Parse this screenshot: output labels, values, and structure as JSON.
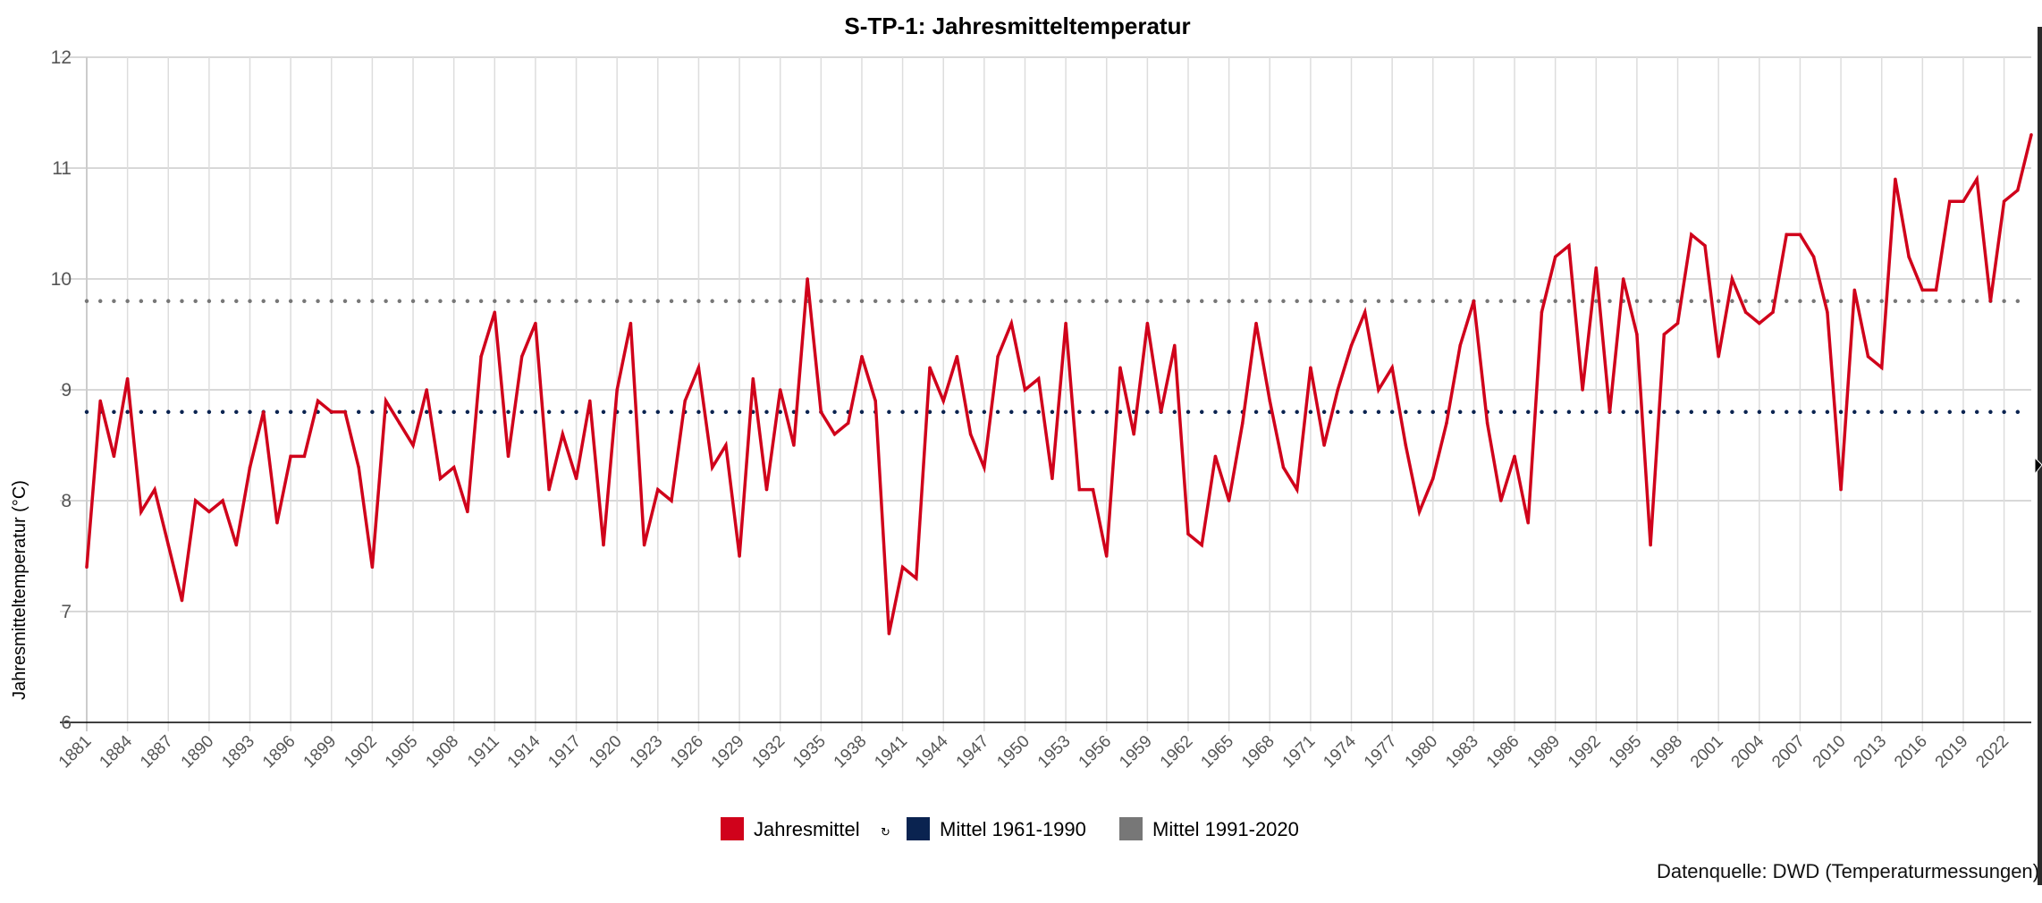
{
  "chart_data": {
    "type": "line",
    "title": "S-TP-1: Jahresmitteltemperatur",
    "xlabel": "",
    "ylabel": "Jahresmitteltemperatur (°C)",
    "ylim": [
      6,
      12
    ],
    "yticks": [
      "6",
      "7",
      "8",
      "9",
      "10",
      "11",
      "12"
    ],
    "xlim": [
      1881,
      2024
    ],
    "xtick_labels": [
      "1881",
      "1884",
      "1887",
      "1890",
      "1893",
      "1896",
      "1899",
      "1902",
      "1905",
      "1908",
      "1911",
      "1914",
      "1917",
      "1920",
      "1923",
      "1926",
      "1929",
      "1932",
      "1935",
      "1938",
      "1941",
      "1944",
      "1947",
      "1950",
      "1953",
      "1956",
      "1959",
      "1962",
      "1965",
      "1968",
      "1971",
      "1974",
      "1977",
      "1980",
      "1983",
      "1986",
      "1989",
      "1992",
      "1995",
      "1998",
      "2001",
      "2004",
      "2007",
      "2010",
      "2013",
      "2016",
      "2019",
      "2022"
    ],
    "grid": true,
    "legend_position": "bottom",
    "x": [
      1881,
      1882,
      1883,
      1884,
      1885,
      1886,
      1887,
      1888,
      1889,
      1890,
      1891,
      1892,
      1893,
      1894,
      1895,
      1896,
      1897,
      1898,
      1899,
      1900,
      1901,
      1902,
      1903,
      1904,
      1905,
      1906,
      1907,
      1908,
      1909,
      1910,
      1911,
      1912,
      1913,
      1914,
      1915,
      1916,
      1917,
      1918,
      1919,
      1920,
      1921,
      1922,
      1923,
      1924,
      1925,
      1926,
      1927,
      1928,
      1929,
      1930,
      1931,
      1932,
      1933,
      1934,
      1935,
      1936,
      1937,
      1938,
      1939,
      1940,
      1941,
      1942,
      1943,
      1944,
      1945,
      1946,
      1947,
      1948,
      1949,
      1950,
      1951,
      1952,
      1953,
      1954,
      1955,
      1956,
      1957,
      1958,
      1959,
      1960,
      1961,
      1962,
      1963,
      1964,
      1965,
      1966,
      1967,
      1968,
      1969,
      1970,
      1971,
      1972,
      1973,
      1974,
      1975,
      1976,
      1977,
      1978,
      1979,
      1980,
      1981,
      1982,
      1983,
      1984,
      1985,
      1986,
      1987,
      1988,
      1989,
      1990,
      1991,
      1992,
      1993,
      1994,
      1995,
      1996,
      1997,
      1998,
      1999,
      2000,
      2001,
      2002,
      2003,
      2004,
      2005,
      2006,
      2007,
      2008,
      2009,
      2010,
      2011,
      2012,
      2013,
      2014,
      2015,
      2016,
      2017,
      2018,
      2019,
      2020,
      2021,
      2022,
      2023,
      2024
    ],
    "series": [
      {
        "name": "Jahresmittel",
        "color": "#d0021b",
        "style": "solid",
        "values": [
          7.4,
          8.9,
          8.4,
          9.1,
          7.9,
          8.1,
          7.6,
          7.1,
          8.0,
          7.9,
          8.0,
          7.6,
          8.3,
          8.8,
          7.8,
          8.4,
          8.4,
          8.9,
          8.8,
          8.8,
          8.3,
          7.4,
          8.9,
          8.7,
          8.5,
          9.0,
          8.2,
          8.3,
          7.9,
          9.3,
          9.7,
          8.4,
          9.3,
          9.6,
          8.1,
          8.6,
          8.2,
          8.9,
          7.6,
          9.0,
          9.6,
          7.6,
          8.1,
          8.0,
          8.9,
          9.2,
          8.3,
          8.5,
          7.5,
          9.1,
          8.1,
          9.0,
          8.5,
          10.0,
          8.8,
          8.6,
          8.7,
          9.3,
          8.9,
          6.8,
          7.4,
          7.3,
          9.2,
          8.9,
          9.3,
          8.6,
          8.3,
          9.3,
          9.6,
          9.0,
          9.1,
          8.2,
          9.6,
          8.1,
          8.1,
          7.5,
          9.2,
          8.6,
          9.6,
          8.8,
          9.4,
          7.7,
          7.6,
          8.4,
          8.0,
          8.7,
          9.6,
          8.9,
          8.3,
          8.1,
          9.2,
          8.5,
          9.0,
          9.4,
          9.7,
          9.0,
          9.2,
          8.5,
          7.9,
          8.2,
          8.7,
          9.4,
          9.8,
          8.7,
          8.0,
          8.4,
          7.8,
          9.7,
          10.2,
          10.3,
          9.0,
          10.1,
          8.8,
          10.0,
          9.5,
          7.6,
          9.5,
          9.6,
          10.4,
          10.3,
          9.3,
          10.0,
          9.7,
          9.6,
          9.7,
          10.4,
          10.4,
          10.2,
          9.7,
          8.1,
          9.9,
          9.3,
          9.2,
          10.9,
          10.2,
          9.9,
          9.9,
          10.7,
          10.7,
          10.9,
          9.8,
          10.7,
          10.8,
          11.3
        ]
      },
      {
        "name": "Mittel 1961-1990",
        "color": "#0a2350",
        "style": "dotted",
        "value": 8.8
      },
      {
        "name": "Mittel 1991-2020",
        "color": "#777777",
        "style": "dotted",
        "value": 9.8
      }
    ]
  },
  "legend": {
    "items": [
      {
        "label": "Jahresmittel",
        "color": "#d0021b",
        "icon": "refresh-icon"
      },
      {
        "label": "Mittel 1961-1990",
        "color": "#0a2350"
      },
      {
        "label": "Mittel 1991-2020",
        "color": "#777777"
      }
    ]
  },
  "source": "Datenquelle: DWD (Temperaturmessungen)"
}
